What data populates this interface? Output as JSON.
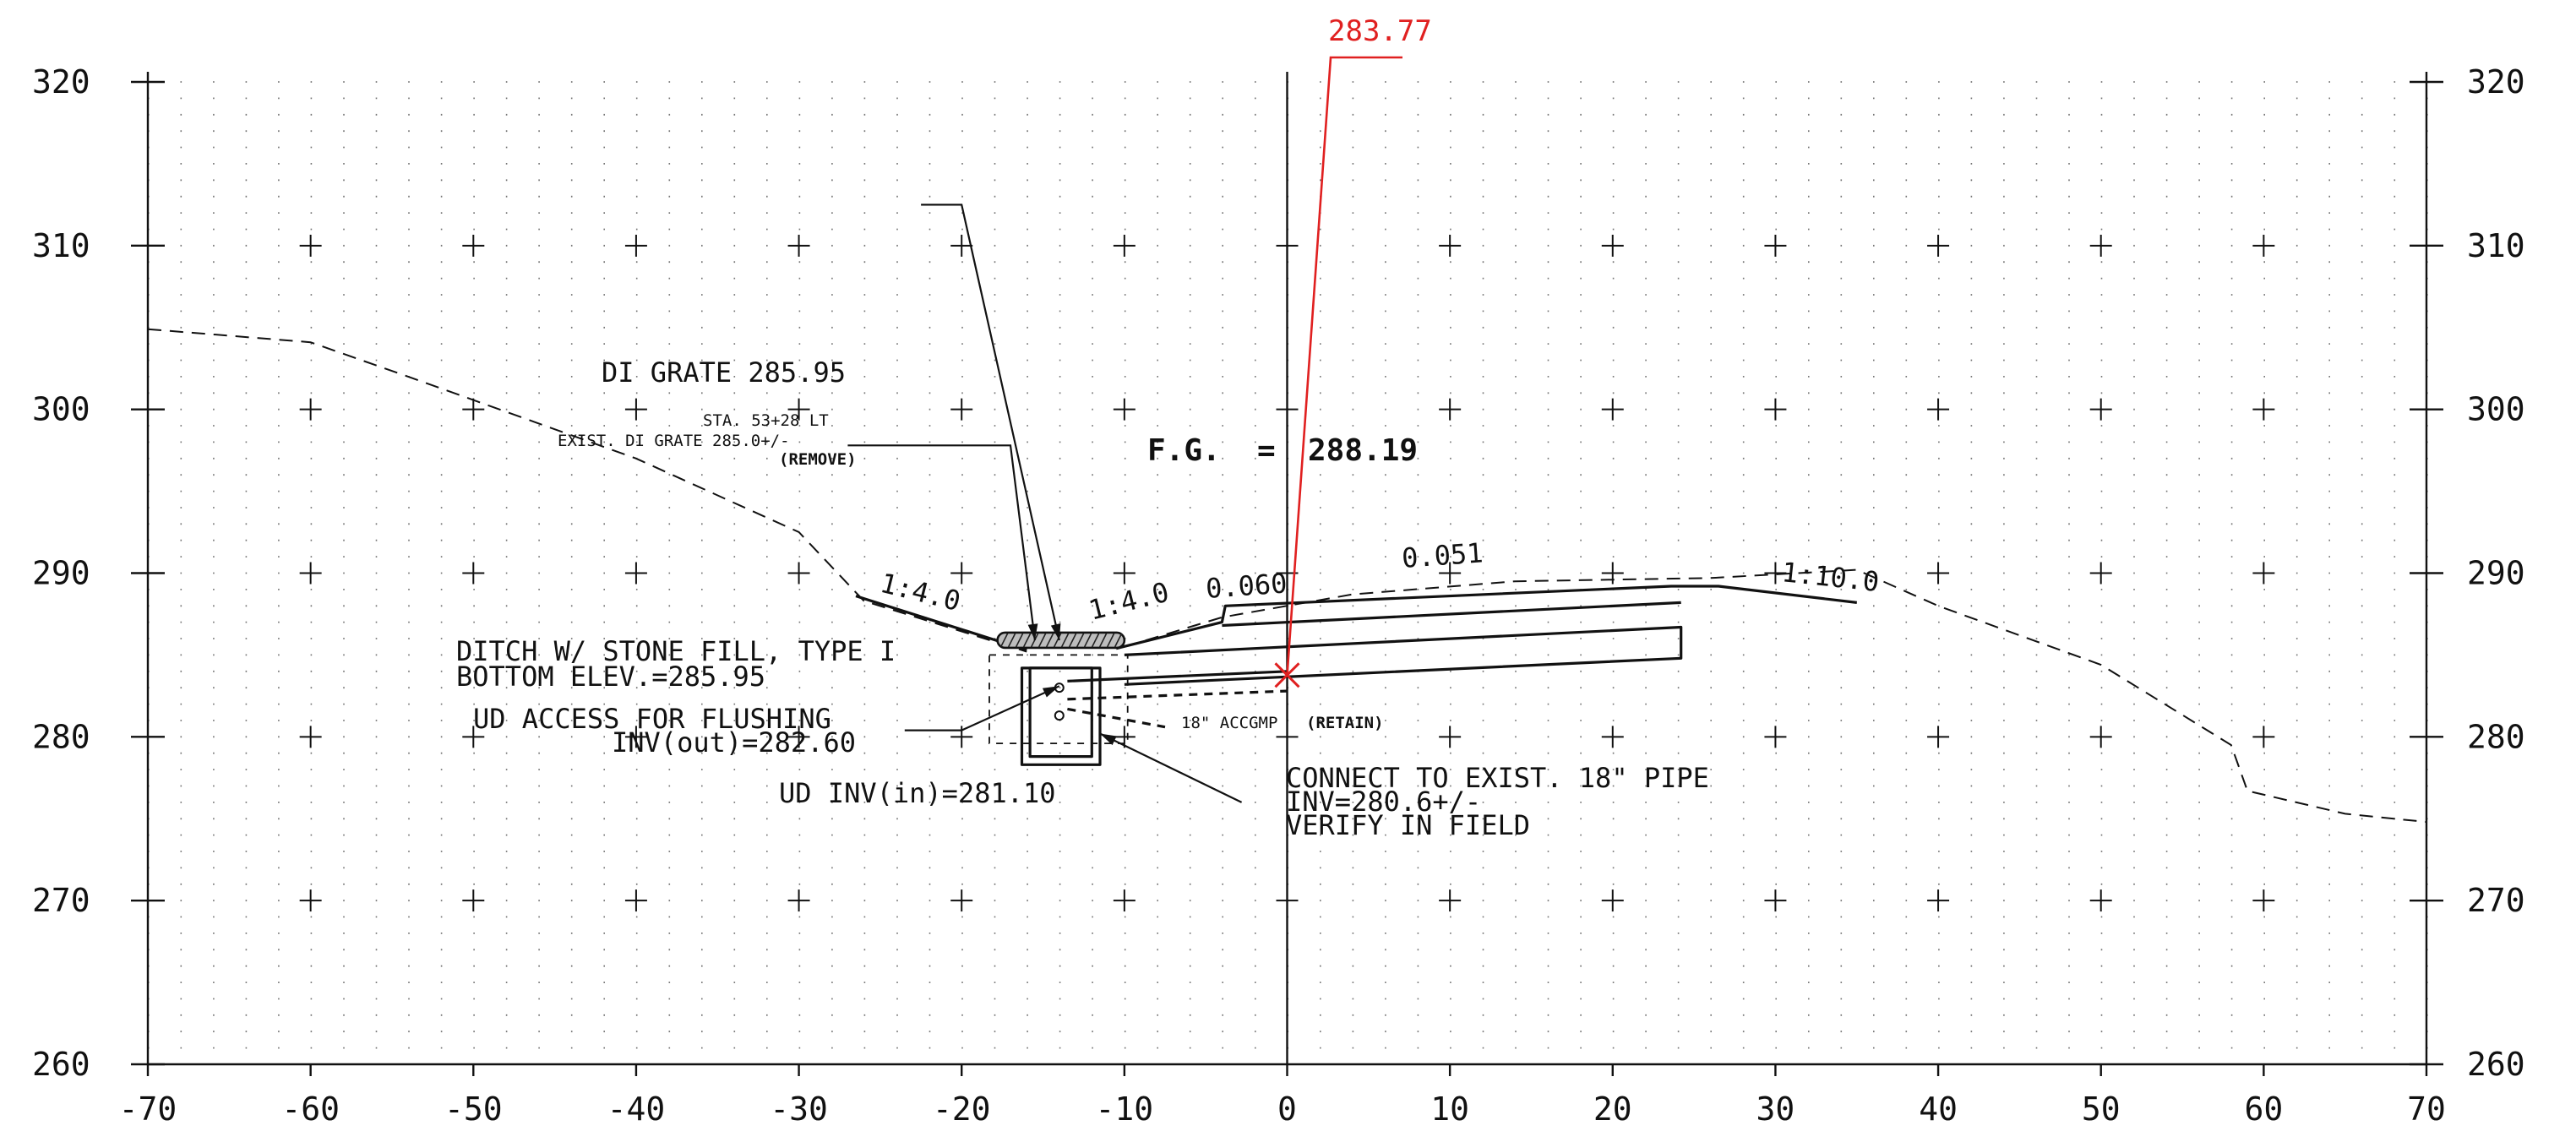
{
  "chart_data": {
    "type": "line",
    "title": "",
    "xlabel": "",
    "ylabel": "",
    "xlim": [
      -70,
      70
    ],
    "ylim": [
      260,
      320
    ],
    "x_ticks": [
      "-70",
      "-60",
      "-50",
      "-40",
      "-30",
      "-20",
      "-10",
      "0",
      "10",
      "20",
      "30",
      "40",
      "50",
      "60",
      "70"
    ],
    "y_ticks": [
      "260",
      "270",
      "280",
      "290",
      "300",
      "310",
      "320"
    ],
    "grid": "dotted grid with cross markers every 10 units",
    "series": [
      {
        "points": [
          [
            -70,
            304.9
          ],
          [
            -60,
            304.1
          ],
          [
            -54,
            302
          ],
          [
            -40,
            297
          ],
          [
            -30,
            292.5
          ],
          [
            -26,
            288.3
          ],
          [
            -16,
            285.2
          ]
        ],
        "color": "#111111"
      },
      {
        "points": [
          [
            -10,
            285.5
          ],
          [
            -4,
            287.3
          ],
          [
            4,
            288.7
          ],
          [
            14,
            289.5
          ],
          [
            26,
            289.7
          ],
          [
            35,
            290.2
          ],
          [
            40,
            288
          ],
          [
            50,
            284.4
          ],
          [
            58,
            279.5
          ],
          [
            59,
            276.7
          ],
          [
            65,
            275.3
          ],
          [
            70,
            274.8
          ]
        ],
        "color": "#111111"
      }
    ],
    "design_section": {
      "left_slope": [
        [
          -26.5,
          288.6
        ],
        [
          -16,
          285.3
        ]
      ],
      "right_slope": [
        [
          -10.5,
          285.4
        ],
        [
          -4,
          287.0
        ],
        [
          -3.8,
          288.0
        ],
        [
          23.6,
          289.2
        ],
        [
          26.5,
          289.2
        ],
        [
          35,
          288.2
        ]
      ],
      "layer1": [
        [
          -4,
          286.8
        ],
        [
          24.2,
          288.2
        ]
      ],
      "layer2": [
        [
          -10,
          285.0
        ],
        [
          24.2,
          286.7
        ],
        [
          24.2,
          284.8
        ],
        [
          -10,
          283.2
        ]
      ],
      "pipe_top": [
        [
          -13.5,
          283.4
        ],
        [
          0,
          284.0
        ]
      ],
      "pipe_bottom": [
        [
          -13.5,
          282.3
        ],
        [
          0,
          282.8
        ]
      ],
      "existing_pipe": [
        [
          -13.5,
          281.7
        ],
        [
          -7.5,
          280.6
        ]
      ],
      "structure_outer": [
        [
          -16.3,
          284.2
        ],
        [
          -11.5,
          284.2
        ],
        [
          -11.5,
          278.3
        ],
        [
          -16.3,
          278.3
        ]
      ],
      "structure_inner": [
        [
          -15.8,
          284.2
        ],
        [
          -12.0,
          284.2
        ],
        [
          -12.0,
          278.8
        ],
        [
          -15.8,
          278.8
        ]
      ],
      "grate": [
        [
          -17.8,
          285.9
        ],
        [
          -10.0,
          285.9
        ]
      ],
      "cl_point": [
        0,
        283.77
      ]
    },
    "leaders": [
      {
        "points": [
          [
            -22.5,
            312.5
          ],
          [
            -20,
            312.5
          ],
          [
            -14,
            285.9
          ]
        ]
      },
      {
        "points": [
          [
            -27,
            297.8
          ],
          [
            -17,
            297.8
          ],
          [
            -15.5,
            285.9
          ]
        ]
      },
      {
        "points": [
          [
            -23.5,
            280.4
          ],
          [
            -20,
            280.4
          ],
          [
            -14,
            283.1
          ]
        ]
      },
      {
        "points": [
          [
            -2.8,
            276.0
          ],
          [
            -11.5,
            280.2
          ]
        ]
      }
    ],
    "annotations": {
      "red_elevation": "283.77",
      "fg": "F.G.  =",
      "fg_value": "288.19",
      "di_grate": "DI GRATE 285.95",
      "sta": "STA. 53+28 LT",
      "exist_di": "EXIST. DI GRATE 285.0+/-",
      "remove": "(REMOVE)",
      "slope_left": "1:4.0",
      "slope_right": "1:4.0",
      "cross_slope_left": "0.060",
      "cross_slope_right": "0.051",
      "slope_far_right": "1:10.0",
      "ditch_line1": "DITCH W/ STONE FILL, TYPE I",
      "ditch_line2": "BOTTOM ELEV.=285.95",
      "ud_access_line1": "UD ACCESS FOR FLUSHING",
      "ud_access_line2": "INV(out)=282.60",
      "ud_inv_in": "UD INV(in)=281.10",
      "pipe_note_size": "18\" ACCGMP",
      "pipe_note_retain": "(RETAIN)",
      "connect_line1": "CONNECT TO EXIST. 18\" PIPE",
      "connect_line2": "INV=280.6+/-",
      "connect_line3": "VERIFY IN FIELD"
    }
  }
}
